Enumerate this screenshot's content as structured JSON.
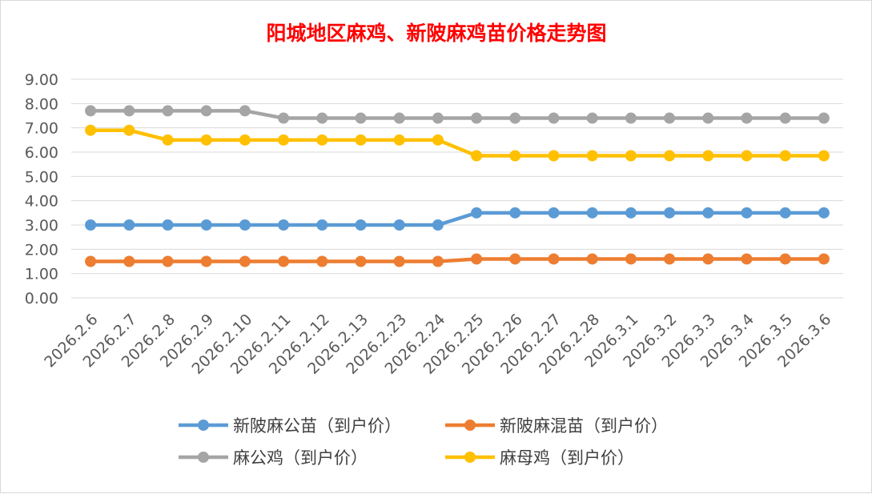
{
  "chart_data": {
    "type": "line",
    "title": "阳城地区麻鸡、新陂麻鸡苗价格走势图",
    "xlabel": "",
    "ylabel": "",
    "ylim": [
      0,
      9
    ],
    "ytick_step": 1,
    "ytick_decimals": 2,
    "grid": "horizontal",
    "legend_position": "bottom",
    "categories": [
      "2026.2.6",
      "2026.2.7",
      "2026.2.8",
      "2026.2.9",
      "2026.2.10",
      "2026.2.11",
      "2026.2.12",
      "2026.2.13",
      "2026.2.23",
      "2026.2.24",
      "2026.2.25",
      "2026.2.26",
      "2026.2.27",
      "2026.2.28",
      "2026.3.1",
      "2026.3.2",
      "2026.3.3",
      "2026.3.4",
      "2026.3.5",
      "2026.3.6"
    ],
    "series": [
      {
        "name": "新陂麻公苗（到户价）",
        "color": "#5b9bd5",
        "values": [
          3.0,
          3.0,
          3.0,
          3.0,
          3.0,
          3.0,
          3.0,
          3.0,
          3.0,
          3.0,
          3.5,
          3.5,
          3.5,
          3.5,
          3.5,
          3.5,
          3.5,
          3.5,
          3.5,
          3.5
        ]
      },
      {
        "name": "新陂麻混苗（到户价）",
        "color": "#ed7d31",
        "values": [
          1.5,
          1.5,
          1.5,
          1.5,
          1.5,
          1.5,
          1.5,
          1.5,
          1.5,
          1.5,
          1.6,
          1.6,
          1.6,
          1.6,
          1.6,
          1.6,
          1.6,
          1.6,
          1.6,
          1.6
        ]
      },
      {
        "name": "麻公鸡（到户价）",
        "color": "#a5a5a5",
        "values": [
          7.7,
          7.7,
          7.7,
          7.7,
          7.7,
          7.4,
          7.4,
          7.4,
          7.4,
          7.4,
          7.4,
          7.4,
          7.4,
          7.4,
          7.4,
          7.4,
          7.4,
          7.4,
          7.4,
          7.4
        ]
      },
      {
        "name": "麻母鸡（到户价）",
        "color": "#ffc000",
        "values": [
          6.9,
          6.9,
          6.5,
          6.5,
          6.5,
          6.5,
          6.5,
          6.5,
          6.5,
          6.5,
          5.85,
          5.85,
          5.85,
          5.85,
          5.85,
          5.85,
          5.85,
          5.85,
          5.85,
          5.85
        ]
      }
    ]
  }
}
